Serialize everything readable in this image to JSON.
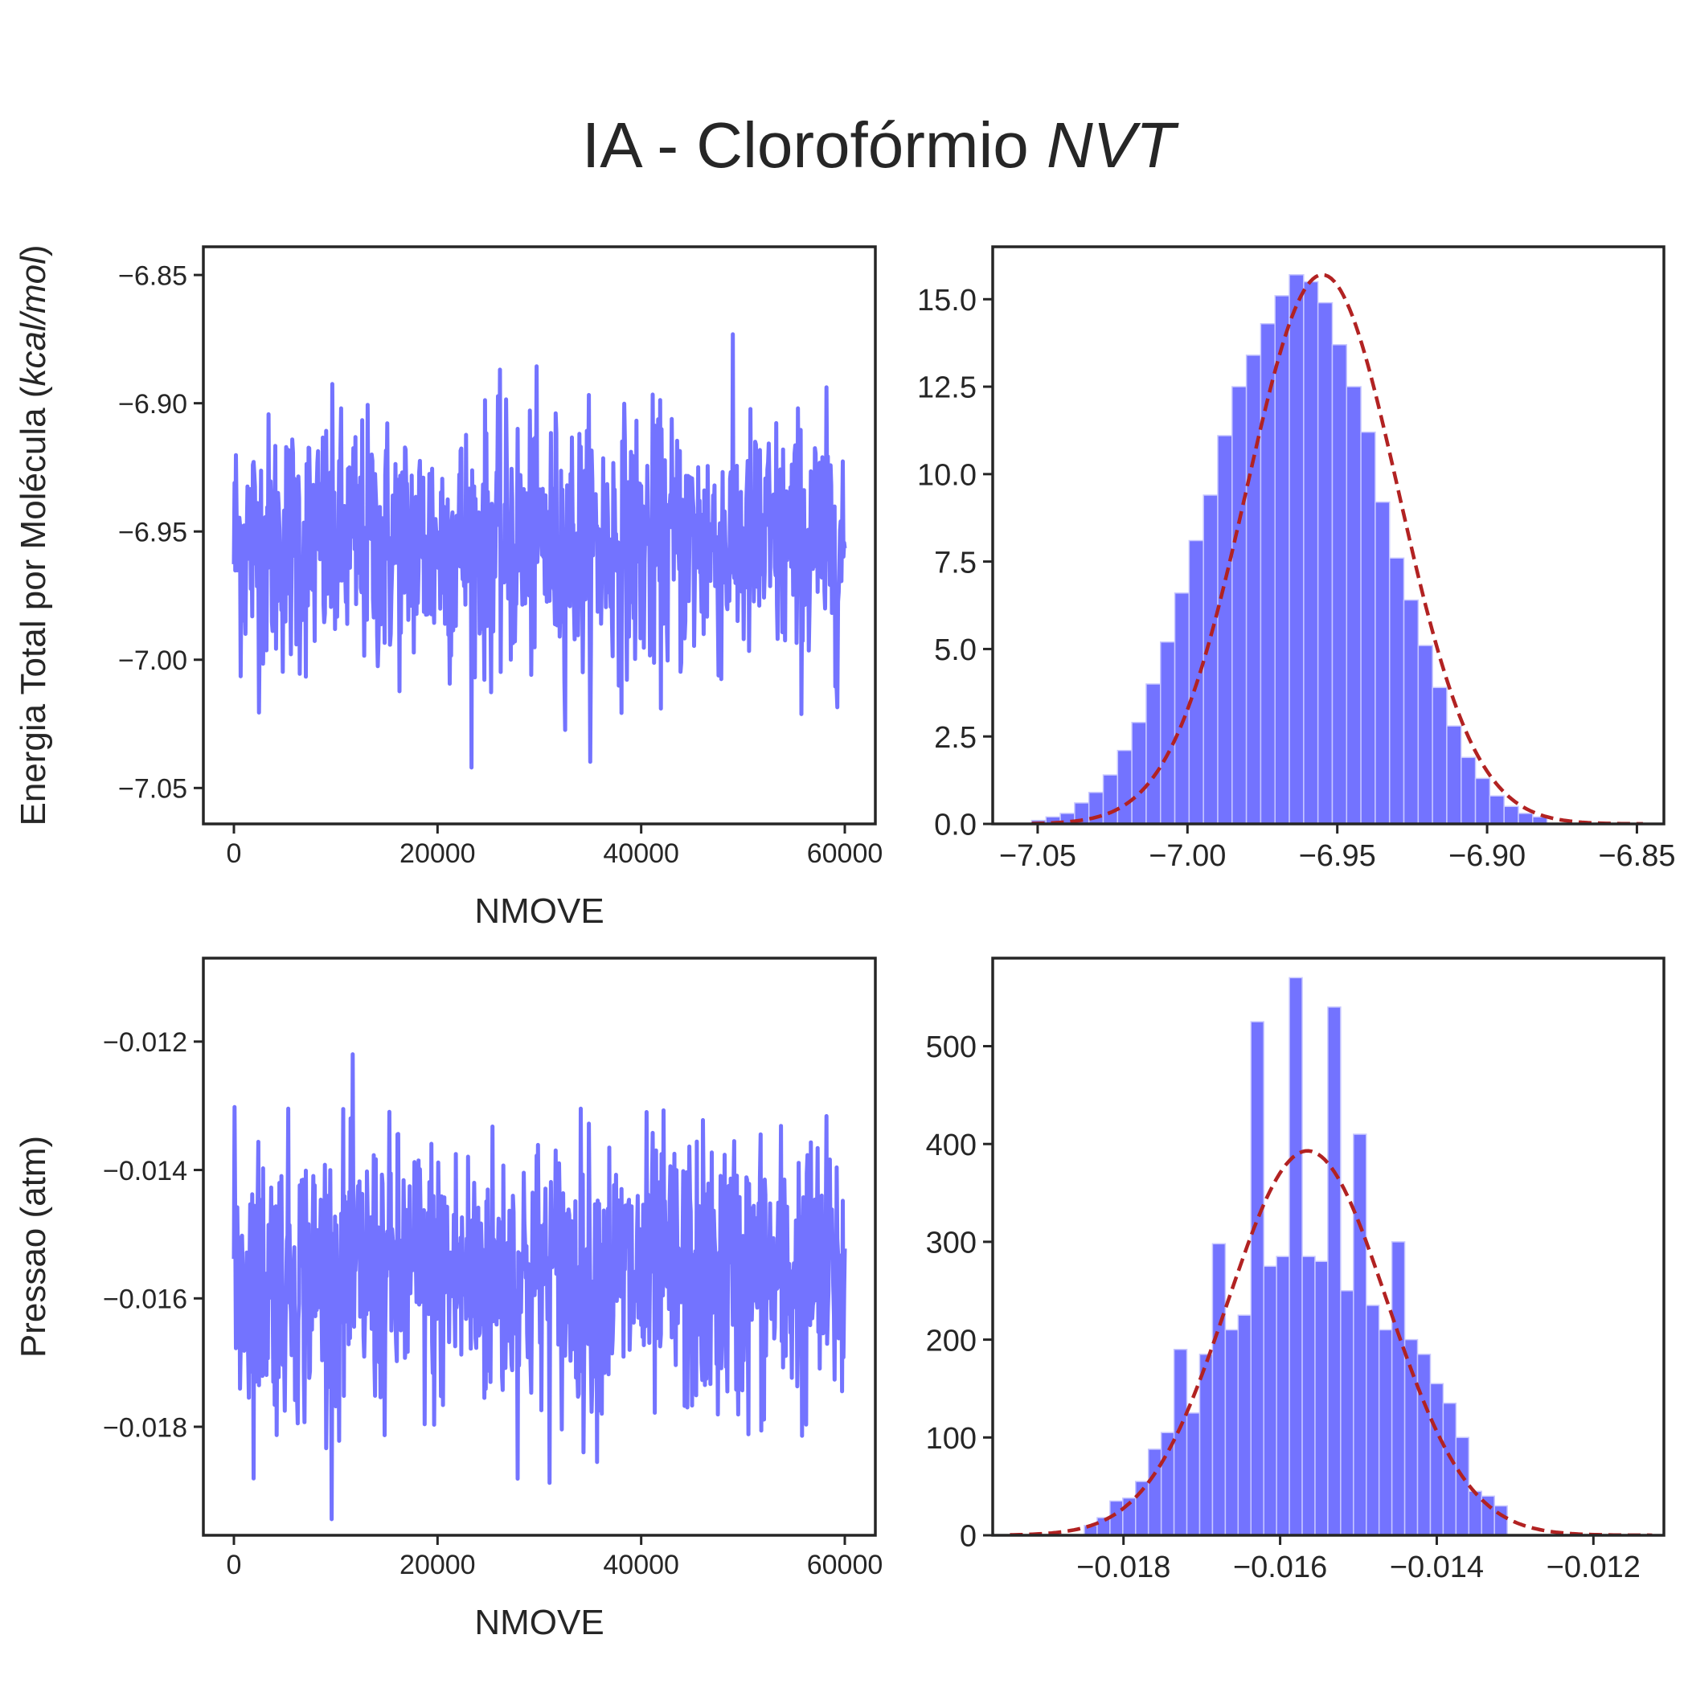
{
  "title": {
    "main": "IA - Clorofórmio ",
    "italic": "NVT"
  },
  "colors": {
    "trace": "#7373ff",
    "bar": "#7373ff",
    "bar_edge": "#c8c8ff",
    "fit": "#b22222",
    "axis": "#262626"
  },
  "chart_data": [
    {
      "id": "energy-trace",
      "type": "line",
      "x_range": [
        0,
        60000
      ],
      "xlim": [
        -3000,
        63000
      ],
      "ylim": [
        -7.064,
        -6.839
      ],
      "xticks": [
        0,
        20000,
        40000,
        60000
      ],
      "xtick_labels": [
        "0",
        "20000",
        "40000",
        "60000"
      ],
      "yticks": [
        -6.85,
        -6.9,
        -6.95,
        -7.0,
        -7.05
      ],
      "ytick_labels": [
        "−6.85",
        "−6.90",
        "−6.95",
        "−7.00",
        "−7.05"
      ],
      "xlabel": "NMOVE",
      "ylabel_main": "Energia Total por Molécula (",
      "ylabel_italic": "kcal/mol",
      "ylabel_end": ")",
      "mean": -6.955,
      "std": 0.025,
      "min": -7.052,
      "max": -6.848
    },
    {
      "id": "energy-hist",
      "type": "bar",
      "xlim": [
        -7.065,
        -6.841
      ],
      "ylim": [
        0,
        16.5
      ],
      "xticks": [
        -7.05,
        -7.0,
        -6.95,
        -6.9,
        -6.85
      ],
      "xtick_labels": [
        "−7.05",
        "−7.00",
        "−6.95",
        "−6.90",
        "−6.85"
      ],
      "yticks": [
        0,
        2.5,
        5,
        7.5,
        10,
        12.5,
        15
      ],
      "ytick_labels": [
        "0.0",
        "2.5",
        "5.0",
        "7.5",
        "10.0",
        "12.5",
        "15.0"
      ],
      "bin_range": [
        -7.052,
        -6.88
      ],
      "values": [
        0.1,
        0.2,
        0.3,
        0.6,
        0.9,
        1.4,
        2.1,
        2.9,
        4.0,
        5.2,
        6.6,
        8.1,
        9.4,
        11.1,
        12.5,
        13.4,
        14.3,
        15.1,
        15.7,
        15.5,
        14.9,
        13.7,
        12.5,
        11.2,
        9.2,
        7.6,
        6.4,
        5.1,
        3.9,
        2.8,
        1.9,
        1.3,
        0.8,
        0.5,
        0.3,
        0.2
      ],
      "fit": {
        "type": "gaussian",
        "mean": -6.955,
        "std": 0.0254,
        "peak": 15.7,
        "range": [
          -7.052,
          -6.848
        ]
      }
    },
    {
      "id": "pressure-trace",
      "type": "line",
      "x_range": [
        0,
        60000
      ],
      "xlim": [
        -3000,
        63000
      ],
      "ylim": [
        -0.01969,
        -0.0107
      ],
      "xticks": [
        0,
        20000,
        40000,
        60000
      ],
      "xtick_labels": [
        "0",
        "20000",
        "40000",
        "60000"
      ],
      "yticks": [
        -0.012,
        -0.014,
        -0.016,
        -0.018
      ],
      "ytick_labels": [
        "−0.012",
        "−0.014",
        "−0.016",
        "−0.018"
      ],
      "xlabel": "NMOVE",
      "ylabel_main": "Pressao (atm)",
      "mean": -0.01567,
      "std": 0.0011,
      "min": -0.01944,
      "max": -0.01123
    },
    {
      "id": "pressure-hist",
      "type": "bar",
      "xlim": [
        -0.01967,
        -0.0111
      ],
      "ylim": [
        0,
        590
      ],
      "xticks": [
        -0.018,
        -0.016,
        -0.014,
        -0.012
      ],
      "xtick_labels": [
        "−0.018",
        "−0.016",
        "−0.014",
        "−0.012"
      ],
      "yticks": [
        0,
        100,
        200,
        300,
        400,
        500
      ],
      "ytick_labels": [
        "0",
        "100",
        "200",
        "300",
        "400",
        "500"
      ],
      "bin_range": [
        -0.0185,
        -0.0131
      ],
      "values": [
        10,
        18,
        35,
        38,
        55,
        88,
        105,
        190,
        125,
        185,
        298,
        210,
        225,
        525,
        275,
        285,
        570,
        285,
        280,
        540,
        250,
        410,
        235,
        210,
        300,
        200,
        185,
        155,
        135,
        100,
        45,
        40,
        30
      ],
      "fit": {
        "type": "gaussian",
        "mean": -0.01565,
        "std": 0.00102,
        "peak": 393,
        "range": [
          -0.01945,
          -0.01125
        ]
      }
    }
  ]
}
